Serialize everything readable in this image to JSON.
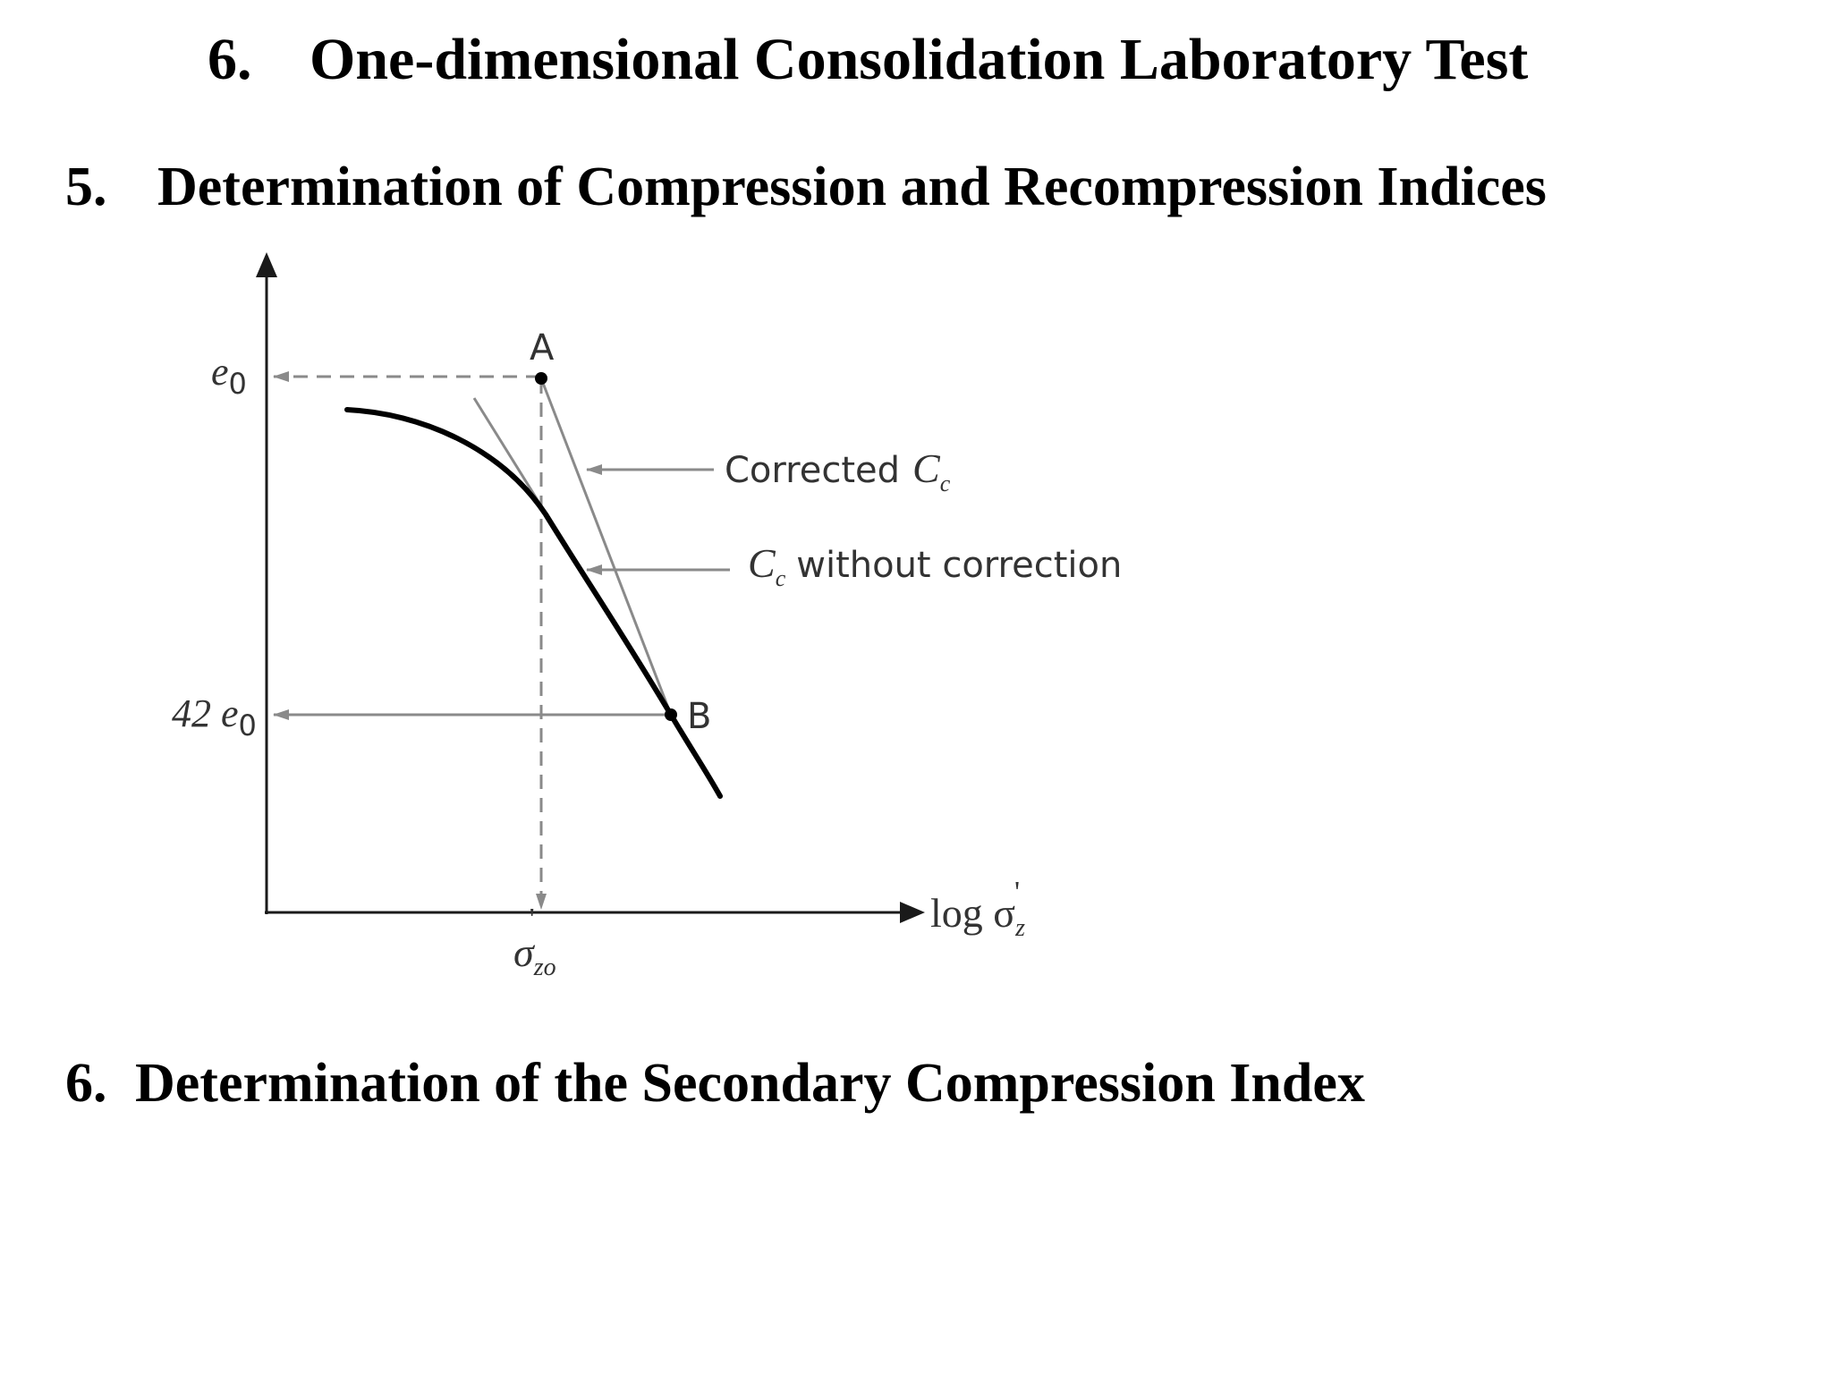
{
  "main_title": {
    "number": "6.",
    "text": "One-dimensional Consolidation Laboratory Test"
  },
  "section_5": {
    "number": "5.",
    "text": "Determination of Compression and Recompression Indices"
  },
  "section_6": {
    "number": "6.",
    "text": "Determination of the Secondary Compression Index"
  },
  "figure": {
    "y_axis": {
      "label_top": "e",
      "label_top_sub": "0",
      "label_lower": "42 e",
      "label_lower_sub": "0"
    },
    "x_axis": {
      "label": "log σ",
      "label_sub": "z",
      "label_prime": "'",
      "tick_label": "σ",
      "tick_label_sub": "zo",
      "tick_label_prime": "'"
    },
    "points": {
      "a": "A",
      "b": "B"
    },
    "annotations": {
      "corrected_prefix": "Corrected",
      "corrected_symbol": "C",
      "corrected_sub": "c",
      "without_symbol": "C",
      "without_sub": "c",
      "without_suffix": "without correction"
    },
    "colors": {
      "curve": "#000000",
      "guide_lines": "#8a8a8a",
      "axes": "#1a1a1a",
      "label_text": "#333333"
    }
  }
}
